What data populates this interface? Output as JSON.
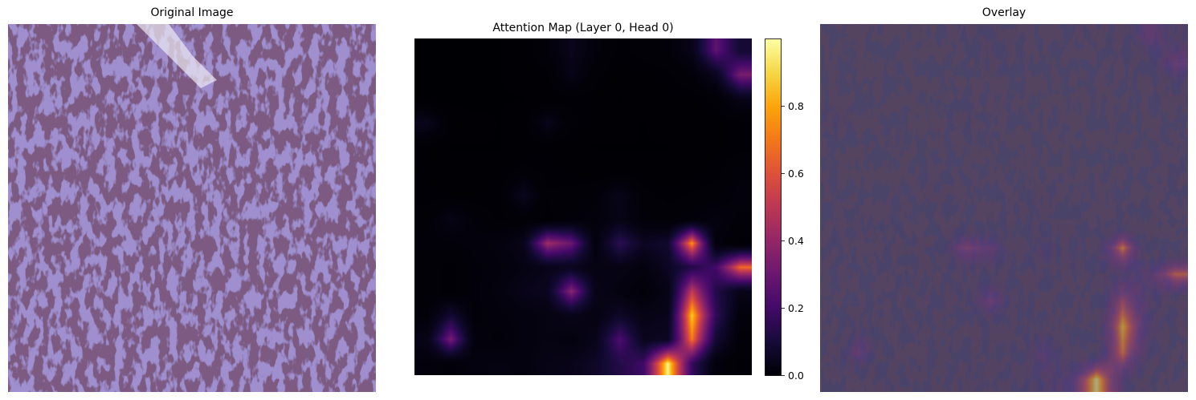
{
  "panels": {
    "original": {
      "title": "Original Image"
    },
    "attention": {
      "title": "Attention Map (Layer 0, Head 0)"
    },
    "overlay": {
      "title": "Overlay"
    }
  },
  "colormap": "inferno",
  "chart_data": {
    "type": "heatmap",
    "title": "Attention Map (Layer 0, Head 0)",
    "colorbar": {
      "range": [
        0,
        1
      ],
      "ticks": [
        0.0,
        0.2,
        0.4,
        0.6,
        0.8
      ],
      "tick_labels": [
        "0.0",
        "0.2",
        "0.4",
        "0.6",
        "0.8"
      ]
    },
    "grid_size": [
      14,
      14
    ],
    "values": [
      [
        0.02,
        0.02,
        0.02,
        0.03,
        0.05,
        0.1,
        0.22,
        0.12,
        0.06,
        0.08,
        0.1,
        0.2,
        0.52,
        0.3
      ],
      [
        0.02,
        0.02,
        0.02,
        0.03,
        0.04,
        0.06,
        0.18,
        0.08,
        0.04,
        0.05,
        0.06,
        0.1,
        0.22,
        0.58
      ],
      [
        0.02,
        0.02,
        0.02,
        0.03,
        0.03,
        0.04,
        0.06,
        0.05,
        0.03,
        0.04,
        0.05,
        0.05,
        0.08,
        0.2
      ],
      [
        0.22,
        0.06,
        0.04,
        0.03,
        0.05,
        0.2,
        0.08,
        0.05,
        0.04,
        0.03,
        0.04,
        0.04,
        0.05,
        0.06
      ],
      [
        0.06,
        0.03,
        0.03,
        0.03,
        0.04,
        0.05,
        0.04,
        0.03,
        0.03,
        0.03,
        0.03,
        0.04,
        0.05,
        0.06
      ],
      [
        0.05,
        0.04,
        0.05,
        0.05,
        0.08,
        0.06,
        0.05,
        0.04,
        0.05,
        0.04,
        0.04,
        0.05,
        0.06,
        0.1
      ],
      [
        0.06,
        0.05,
        0.05,
        0.06,
        0.22,
        0.07,
        0.08,
        0.1,
        0.2,
        0.08,
        0.06,
        0.07,
        0.08,
        0.12
      ],
      [
        0.08,
        0.18,
        0.1,
        0.06,
        0.08,
        0.06,
        0.1,
        0.12,
        0.18,
        0.1,
        0.08,
        0.1,
        0.14,
        0.1
      ],
      [
        0.1,
        0.1,
        0.12,
        0.14,
        0.2,
        0.66,
        0.55,
        0.14,
        0.4,
        0.24,
        0.28,
        0.88,
        0.12,
        0.06
      ],
      [
        0.08,
        0.06,
        0.1,
        0.12,
        0.16,
        0.2,
        0.22,
        0.16,
        0.18,
        0.14,
        0.24,
        0.36,
        0.45,
        0.82
      ],
      [
        0.08,
        0.06,
        0.1,
        0.14,
        0.2,
        0.22,
        0.62,
        0.2,
        0.14,
        0.1,
        0.18,
        0.72,
        0.36,
        0.2
      ],
      [
        0.1,
        0.3,
        0.1,
        0.12,
        0.14,
        0.16,
        0.2,
        0.16,
        0.26,
        0.18,
        0.2,
        0.94,
        0.4,
        0.12
      ],
      [
        0.18,
        0.58,
        0.12,
        0.1,
        0.14,
        0.16,
        0.14,
        0.2,
        0.48,
        0.22,
        0.24,
        0.84,
        0.3,
        0.1
      ],
      [
        0.12,
        0.1,
        0.14,
        0.16,
        0.14,
        0.18,
        0.2,
        0.26,
        0.36,
        0.44,
        0.99,
        0.42,
        0.12,
        0.06
      ]
    ]
  }
}
